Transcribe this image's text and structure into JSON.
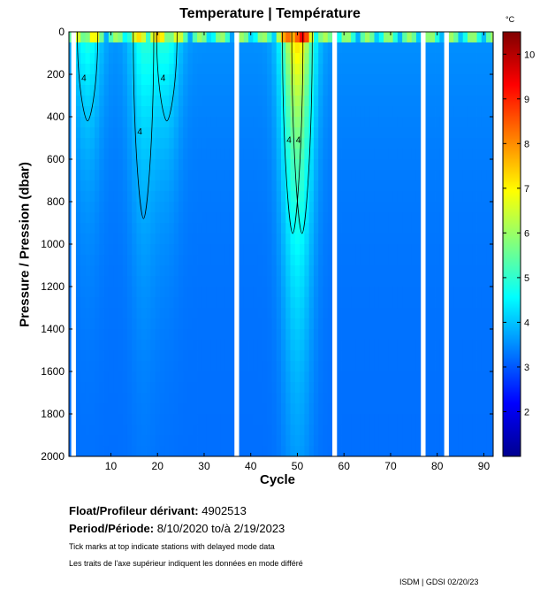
{
  "chart_data": {
    "type": "heatmap",
    "title": "Temperature | Température",
    "xlabel": "Cycle",
    "ylabel": "Pressure / Pression (dbar)",
    "x_range": [
      1,
      92
    ],
    "y_range": [
      0,
      2000
    ],
    "y_inverted": true,
    "x_ticks": [
      10,
      20,
      30,
      40,
      50,
      60,
      70,
      80,
      90
    ],
    "y_ticks": [
      0,
      200,
      400,
      600,
      800,
      1000,
      1200,
      1400,
      1600,
      1800,
      2000
    ],
    "colorbar": {
      "unit": "°C",
      "range": [
        1,
        10.5
      ],
      "ticks": [
        2,
        3,
        4,
        5,
        6,
        7,
        8,
        9,
        10
      ],
      "colormap": "jet"
    },
    "contour_level": 4,
    "missing_cycles": [
      2,
      37,
      58,
      77,
      82
    ],
    "warm_intrusion_cycles": [
      5,
      17,
      22,
      49,
      51
    ],
    "background_deep_temperature": 3.2
  },
  "info": {
    "float_label": "Float/Profileur dérivant:",
    "float_id": "4902513",
    "period_label": "Period/Période:",
    "period_value": "8/10/2020  to/à  2/19/2023",
    "note_en": "Tick marks at top indicate stations with delayed mode data",
    "note_fr": "Les traits de l'axe supérieur indiquent les données en mode différé",
    "credit": "ISDM | GDSI  02/20/23"
  }
}
